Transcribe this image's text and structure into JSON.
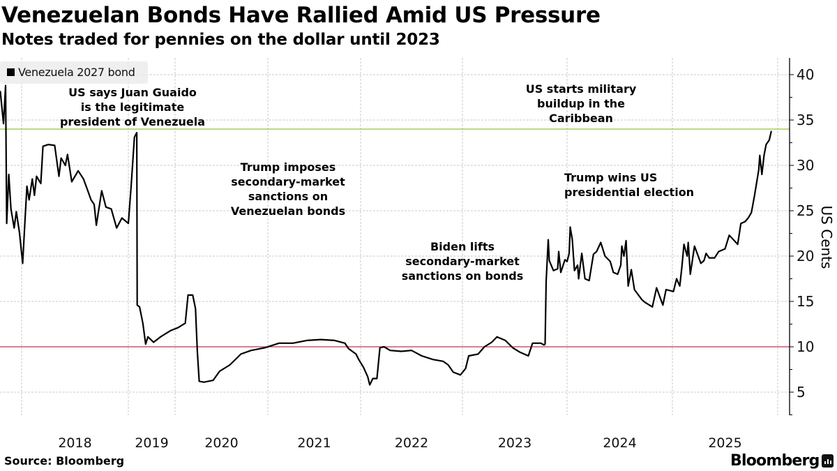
{
  "header": {
    "title": "Venezuelan Bonds Have Rallied Amid US Pressure",
    "subtitle": "Notes traded for pennies on the dollar until 2023"
  },
  "footer": {
    "source": "Source: Bloomberg",
    "brand": "Bloomberg"
  },
  "chart_data": {
    "type": "line",
    "title": "Venezuelan Bonds Have Rallied Amid US Pressure",
    "subtitle": "Notes traded for pennies on the dollar until 2023",
    "xlabel": "",
    "ylabel": "US Cents",
    "y_axis_side": "right",
    "ylim": [
      2.5,
      42
    ],
    "yticks": [
      5,
      10,
      15,
      20,
      25,
      30,
      35,
      40
    ],
    "xticks": [
      "2018",
      "2019",
      "2020",
      "2021",
      "2022",
      "2023",
      "2024",
      "2025"
    ],
    "grid": true,
    "legend": {
      "placement": "top-left",
      "entries": [
        "Venezuela 2027 bond"
      ]
    },
    "colors": {
      "series": "#000000",
      "upper_reference": "#8dc63f",
      "lower_reference": "#c0334d",
      "grid": "#c8c8c8"
    },
    "reference_lines": [
      {
        "y": 34,
        "color": "#8dc63f"
      },
      {
        "y": 10,
        "color": "#c0334d"
      }
    ],
    "series": [
      {
        "name": "Venezuela 2027 bond",
        "x": [
          2017.8,
          2017.83,
          2017.85,
          2017.86,
          2017.88,
          2017.9,
          2017.93,
          2017.95,
          2017.98,
          2018.01,
          2018.03,
          2018.05,
          2018.07,
          2018.1,
          2018.12,
          2018.14,
          2018.18,
          2018.2,
          2018.25,
          2018.31,
          2018.35,
          2018.37,
          2018.41,
          2018.43,
          2018.47,
          2018.53,
          2018.58,
          2018.62,
          2018.65,
          2018.68,
          2018.7,
          2018.75,
          2018.79,
          2018.84,
          2018.89,
          2018.94,
          2019.0,
          2019.06,
          2019.13,
          2019.16,
          2019.18,
          2019.19,
          2019.24,
          2019.31,
          2019.37,
          2019.42,
          2019.54,
          2019.69,
          2019.91,
          2020.03,
          2020.11,
          2020.14,
          2020.19,
          2020.22,
          2020.24,
          2020.26,
          2020.31,
          2020.41,
          2020.48,
          2020.59,
          2020.71,
          2020.82,
          2020.97,
          2021.12,
          2021.27,
          2021.42,
          2021.57,
          2021.72,
          2021.83,
          2021.87,
          2021.95,
          2021.98,
          2022.03,
          2022.07,
          2022.09,
          2022.12,
          2022.16,
          2022.19,
          2022.23,
          2022.29,
          2022.4,
          2022.5,
          2022.6,
          2022.71,
          2022.81,
          2022.86,
          2022.91,
          2022.98,
          2023.03,
          2023.06,
          2023.15,
          2023.21,
          2023.28,
          2023.33,
          2023.41,
          2023.48,
          2023.55,
          2023.63,
          2023.67,
          2023.75,
          2023.78,
          2023.79,
          2023.8,
          2023.81,
          2023.82,
          2023.83,
          2023.87,
          2023.91,
          2023.92,
          2023.94,
          2023.98,
          2024.0,
          2024.02,
          2024.03,
          2024.05,
          2024.07,
          2024.1,
          2024.11,
          2024.14,
          2024.17,
          2024.21,
          2024.25,
          2024.28,
          2024.32,
          2024.36,
          2024.41,
          2024.44,
          2024.48,
          2024.51,
          2024.52,
          2024.54,
          2024.56,
          2024.58,
          2024.61,
          2024.64,
          2024.71,
          2024.74,
          2024.81,
          2024.85,
          2024.91,
          2024.94,
          2025.01,
          2025.04,
          2025.07,
          2025.09,
          2025.11,
          2025.14,
          2025.15,
          2025.17,
          2025.21,
          2025.27,
          2025.3,
          2025.32,
          2025.35,
          2025.4,
          2025.44,
          2025.5,
          2025.54,
          2025.58,
          2025.62,
          2025.65,
          2025.69,
          2025.72,
          2025.75,
          2025.78,
          2025.82,
          2025.83,
          2025.85,
          2025.87,
          2025.89,
          2025.92,
          2025.94
        ],
        "y": [
          38.2,
          34.6,
          38.8,
          23.6,
          29.0,
          25.2,
          23.1,
          24.9,
          22.6,
          19.2,
          23.6,
          27.7,
          26.2,
          28.5,
          26.7,
          28.8,
          28.0,
          32.1,
          32.3,
          32.2,
          28.8,
          30.8,
          30.0,
          31.2,
          28.2,
          29.4,
          28.5,
          27.2,
          26.2,
          25.7,
          23.4,
          27.2,
          25.4,
          25.2,
          23.1,
          24.2,
          23.6,
          27.7,
          33.1,
          33.4,
          33.6,
          14.6,
          14.4,
          12.6,
          10.3,
          11.1,
          10.5,
          11.1,
          11.8,
          12.1,
          12.6,
          15.7,
          15.7,
          14.2,
          9.5,
          6.2,
          6.1,
          6.3,
          7.3,
          8.0,
          9.2,
          9.6,
          9.9,
          10.4,
          10.4,
          10.7,
          10.8,
          10.7,
          10.4,
          9.8,
          9.2,
          8.6,
          7.7,
          6.7,
          5.8,
          6.5,
          6.5,
          9.9,
          10.0,
          9.6,
          9.5,
          9.6,
          9.0,
          8.6,
          8.4,
          8.0,
          7.2,
          6.9,
          7.6,
          9.0,
          9.2,
          10.0,
          10.5,
          11.1,
          10.7,
          9.9,
          9.4,
          9.0,
          10.4,
          10.4,
          10.2,
          10.3,
          17.2,
          19.5,
          21.8,
          19.5,
          18.4,
          18.6,
          20.5,
          18.2,
          19.6,
          19.4,
          20.3,
          23.2,
          21.8,
          18.4,
          19.0,
          17.5,
          20.3,
          17.5,
          17.3,
          20.2,
          20.5,
          21.5,
          20.0,
          19.4,
          18.2,
          18.0,
          19.0,
          21.1,
          20.0,
          21.7,
          16.7,
          18.5,
          16.3,
          15.2,
          14.9,
          14.4,
          16.5,
          14.6,
          16.3,
          16.1,
          17.5,
          16.7,
          18.8,
          21.3,
          20.0,
          21.5,
          18.0,
          21.1,
          19.2,
          19.5,
          20.3,
          19.8,
          19.8,
          20.5,
          20.8,
          22.3,
          21.8,
          21.3,
          23.6,
          23.8,
          24.2,
          24.8,
          26.7,
          29.5,
          31.1,
          29.0,
          31.1,
          32.3,
          32.8,
          33.8
        ]
      }
    ],
    "annotations": [
      {
        "lines": [
          "US says Juan Guaido",
          "is the legitimate",
          "president of Venezuela"
        ]
      },
      {
        "lines": [
          "Trump imposes",
          "secondary-market",
          "sanctions on",
          "Venezuelan bonds"
        ]
      },
      {
        "lines": [
          "Biden lifts",
          "secondary-market",
          "sanctions on bonds"
        ]
      },
      {
        "lines": [
          "US starts military",
          "buildup in the",
          "Caribbean"
        ]
      },
      {
        "lines": [
          "Trump wins US",
          "presidential election"
        ]
      }
    ]
  }
}
